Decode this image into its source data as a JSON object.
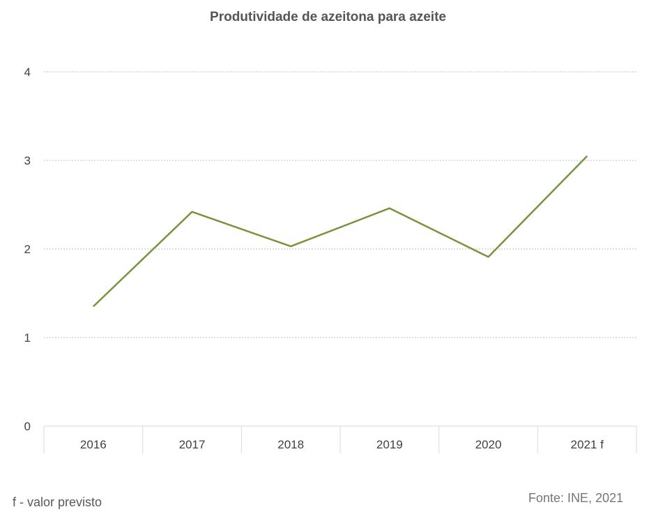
{
  "chart_data": {
    "type": "line",
    "title": "Produtividade de azeitona para azeite",
    "categories": [
      "2016",
      "2017",
      "2018",
      "2019",
      "2020",
      "2021 f"
    ],
    "series": [
      {
        "values": [
          1.35,
          2.42,
          2.03,
          2.46,
          1.91,
          3.05
        ],
        "color": "#77933c"
      }
    ],
    "yticks": [
      0,
      1,
      2,
      3,
      4
    ],
    "ylim": [
      0,
      4
    ],
    "grid": true,
    "legend": "none"
  },
  "footnote": "f - valor previsto",
  "source": "Fonte: INE, 2021",
  "colors": {
    "line": "#77933c",
    "grid": "#bfbfbf",
    "axis": "#d9d9d9",
    "text": "#404040"
  }
}
